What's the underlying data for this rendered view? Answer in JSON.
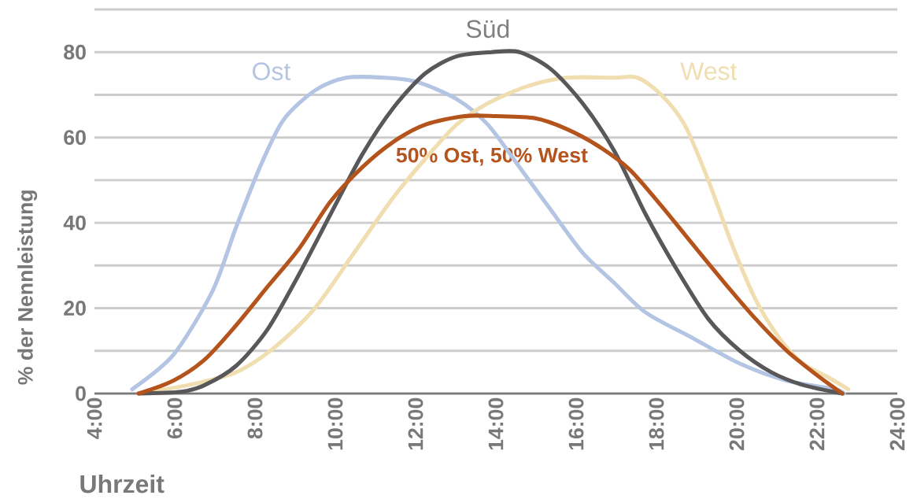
{
  "chart_data": {
    "type": "line",
    "xlabel": "Uhrzeit",
    "ylabel": "% der Nennleistung",
    "xlim": [
      4,
      24
    ],
    "ylim": [
      0,
      90
    ],
    "xticks": [
      {
        "value": 4,
        "label": "4:00"
      },
      {
        "value": 6,
        "label": "6:00"
      },
      {
        "value": 8,
        "label": "8:00"
      },
      {
        "value": 10,
        "label": "10:00"
      },
      {
        "value": 12,
        "label": "12:00"
      },
      {
        "value": 14,
        "label": "14:00"
      },
      {
        "value": 16,
        "label": "16:00"
      },
      {
        "value": 18,
        "label": "18:00"
      },
      {
        "value": 20,
        "label": "20:00"
      },
      {
        "value": 22,
        "label": "22:00"
      },
      {
        "value": 24,
        "label": "24:00"
      }
    ],
    "yticks": [
      0,
      {
        "value": 10,
        "label": null
      },
      20,
      {
        "value": 30,
        "label": null
      },
      40,
      {
        "value": 50,
        "label": null
      },
      60,
      {
        "value": 70,
        "label": null
      },
      80,
      {
        "value": 90,
        "label": null
      }
    ],
    "grid": "y",
    "marker": "none",
    "line_style": "solid",
    "series": [
      {
        "name": "Ost",
        "color": "#b4c5e4",
        "x": [
          4.94,
          5.96,
          6.94,
          7.53,
          8.12,
          8.7,
          9.49,
          10.27,
          11.25,
          12.04,
          13.02,
          13.8,
          14.59,
          15.37,
          16.16,
          16.94,
          17.73,
          18.9,
          20.08,
          21.25,
          22.43,
          22.67
        ],
        "values": [
          1,
          9,
          24,
          39,
          53,
          64,
          71,
          74,
          74,
          73,
          69,
          63,
          53,
          43,
          33,
          26,
          19,
          13,
          7,
          3,
          1,
          0
        ]
      },
      {
        "name": "West",
        "color": "#f0deb0",
        "x": [
          5.1,
          6.35,
          7.53,
          8.51,
          9.49,
          10.47,
          11.45,
          12.24,
          13.02,
          13.8,
          14.78,
          15.76,
          16.94,
          17.53,
          18.12,
          18.7,
          19.29,
          19.88,
          20.47,
          21.06,
          21.65,
          22.24,
          22.78
        ],
        "values": [
          0,
          2,
          5,
          11,
          20,
          33,
          46,
          55,
          63,
          68,
          72,
          74,
          74,
          74,
          70,
          63,
          50,
          35,
          22,
          13,
          7,
          4,
          1
        ]
      },
      {
        "name": "Süd",
        "color": "#58585a",
        "x": [
          5.1,
          6.16,
          6.75,
          7.53,
          8.31,
          9.1,
          9.88,
          10.67,
          11.45,
          12.24,
          13.02,
          13.9,
          14.59,
          15.37,
          16.16,
          16.94,
          17.73,
          18.51,
          19.29,
          20.08,
          20.86,
          21.65,
          22.63
        ],
        "values": [
          0,
          0.4,
          2,
          6.5,
          15,
          28,
          42,
          56,
          67,
          75,
          79,
          80,
          80,
          76,
          68,
          57,
          42,
          29,
          17.5,
          10,
          5,
          2,
          0
        ]
      },
      {
        "name": "50% Ost, 50% West",
        "color": "#b4531b",
        "x": [
          5.1,
          5.96,
          6.75,
          7.53,
          8.31,
          9.1,
          9.88,
          10.67,
          11.45,
          12.24,
          13.22,
          14,
          14.98,
          15.76,
          16.55,
          17.33,
          18.12,
          18.9,
          19.69,
          20.47,
          21.25,
          22.04,
          22.63
        ],
        "values": [
          0,
          3,
          8,
          16,
          25,
          34,
          45,
          53,
          59,
          63,
          65,
          65,
          64.5,
          62,
          58,
          52.5,
          44,
          35,
          26,
          17.5,
          10,
          4,
          0
        ]
      }
    ]
  }
}
